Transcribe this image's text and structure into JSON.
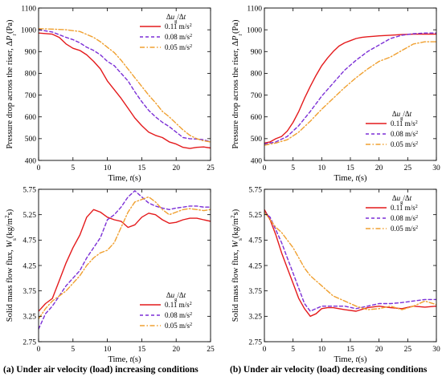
{
  "captions": {
    "a": "(a) Under air velocity (load) increasing conditions",
    "b": "(b) Under air velocity (load) decreasing conditions"
  },
  "colors": {
    "red": "#e41a1c",
    "purple": "#7b2fd6",
    "orange": "#f0a030"
  },
  "chart_data": [
    {
      "id": "top-left",
      "type": "line",
      "xlabel": "Time, t(s)",
      "ylabel": "Pressure drop across the riser, ΔPr(Pa)",
      "xlim": [
        0,
        25
      ],
      "ylim": [
        400,
        1100
      ],
      "xticks": [
        0,
        5,
        10,
        15,
        20,
        25
      ],
      "yticks": [
        400,
        500,
        600,
        700,
        800,
        900,
        1000,
        1100
      ],
      "ytick_labels": [
        "400",
        "500",
        "600",
        "700",
        "800",
        "900",
        "1000",
        "1100"
      ],
      "legend_title": "Δug/Δt",
      "legend_position": "top-right",
      "series": [
        {
          "name": "0.11 m/s2",
          "color": "#e41a1c",
          "dash": "solid",
          "x": [
            0,
            2,
            3,
            4,
            5,
            6,
            7,
            8,
            9,
            10,
            11,
            12,
            13,
            14,
            15,
            16,
            17,
            18,
            19,
            20,
            21,
            22,
            23,
            24,
            25
          ],
          "y": [
            985,
            980,
            965,
            935,
            915,
            905,
            885,
            855,
            820,
            765,
            725,
            685,
            640,
            595,
            560,
            530,
            515,
            505,
            485,
            475,
            460,
            455,
            460,
            462,
            457
          ]
        },
        {
          "name": "0.08 m/s2",
          "color": "#7b2fd6",
          "dash": "dash",
          "x": [
            0,
            2,
            4,
            5,
            6,
            7,
            8,
            9,
            10,
            11,
            12,
            13,
            14,
            15,
            16,
            17,
            18,
            19,
            20,
            21,
            22,
            23,
            24,
            25
          ],
          "y": [
            1000,
            990,
            965,
            955,
            940,
            920,
            905,
            885,
            855,
            835,
            800,
            765,
            715,
            670,
            630,
            600,
            575,
            555,
            530,
            505,
            500,
            498,
            495,
            485
          ]
        },
        {
          "name": "0.05 m/s2",
          "color": "#f0a030",
          "dash": "dashdot",
          "x": [
            0,
            2,
            4,
            6,
            8,
            9,
            10,
            11,
            12,
            13,
            14,
            15,
            16,
            17,
            18,
            19,
            20,
            21,
            22,
            23,
            24,
            25
          ],
          "y": [
            1005,
            1003,
            1000,
            992,
            965,
            945,
            920,
            895,
            860,
            820,
            780,
            740,
            700,
            665,
            625,
            600,
            570,
            540,
            515,
            500,
            490,
            485
          ]
        }
      ]
    },
    {
      "id": "top-right",
      "type": "line",
      "xlabel": "Time, t(s)",
      "ylabel": "Pressure drop across the riser, ΔPr(Pa)",
      "xlim": [
        0,
        30
      ],
      "ylim": [
        400,
        1100
      ],
      "xticks": [
        0,
        5,
        10,
        15,
        20,
        25,
        30
      ],
      "yticks": [
        400,
        500,
        600,
        700,
        800,
        900,
        1000,
        1100
      ],
      "ytick_labels": [
        "400",
        "500",
        "600",
        "700",
        "800",
        "900",
        "1000",
        "1100"
      ],
      "legend_title": "Δug/Δt",
      "legend_position": "bottom-right",
      "series": [
        {
          "name": "0.11 m/s2",
          "color": "#e41a1c",
          "dash": "solid",
          "x": [
            0,
            1,
            2,
            3,
            4,
            5,
            6,
            7,
            8,
            9,
            10,
            11,
            12,
            13,
            14,
            15,
            16,
            17,
            18,
            19,
            20,
            22,
            24,
            26,
            28,
            30
          ],
          "y": [
            480,
            485,
            500,
            510,
            535,
            575,
            625,
            685,
            740,
            790,
            835,
            870,
            900,
            925,
            940,
            950,
            960,
            965,
            968,
            970,
            972,
            975,
            978,
            980,
            980,
            980
          ]
        },
        {
          "name": "0.08 m/s2",
          "color": "#7b2fd6",
          "dash": "dash",
          "x": [
            0,
            2,
            4,
            6,
            8,
            10,
            12,
            14,
            16,
            18,
            20,
            22,
            24,
            26,
            28,
            30
          ],
          "y": [
            475,
            485,
            510,
            560,
            625,
            695,
            755,
            815,
            860,
            900,
            930,
            960,
            975,
            982,
            985,
            985
          ]
        },
        {
          "name": "0.05 m/s2",
          "color": "#f0a030",
          "dash": "dashdot",
          "x": [
            0,
            2,
            4,
            6,
            8,
            10,
            12,
            14,
            16,
            18,
            20,
            22,
            24,
            26,
            28,
            30
          ],
          "y": [
            470,
            480,
            495,
            530,
            580,
            635,
            685,
            735,
            780,
            820,
            855,
            875,
            905,
            935,
            945,
            945
          ]
        }
      ]
    },
    {
      "id": "bottom-left",
      "type": "line",
      "xlabel": "Time, t(s)",
      "ylabel": "Solid mass flow flux, Ws(kg/m2s)",
      "xlim": [
        0,
        25
      ],
      "ylim": [
        2.75,
        5.75
      ],
      "xticks": [
        0,
        5,
        10,
        15,
        20,
        25
      ],
      "yticks": [
        2.75,
        3.25,
        3.75,
        4.25,
        4.75,
        5.25,
        5.75
      ],
      "ytick_labels": [
        "2.75",
        "3.25",
        "3.75",
        "4.25",
        "4.75",
        "5.25",
        "5.75"
      ],
      "legend_title": "Δug/Δt",
      "legend_position": "bottom-right",
      "series": [
        {
          "name": "0.11 m/s2",
          "color": "#e41a1c",
          "dash": "solid",
          "x": [
            0,
            1,
            2,
            3,
            4,
            5,
            6,
            7,
            8,
            9,
            10,
            11,
            12,
            13,
            14,
            15,
            16,
            17,
            18,
            19,
            20,
            21,
            22,
            23,
            24,
            25
          ],
          "y": [
            3.35,
            3.5,
            3.6,
            3.95,
            4.3,
            4.6,
            4.85,
            5.2,
            5.35,
            5.3,
            5.2,
            5.15,
            5.12,
            5.0,
            5.05,
            5.2,
            5.28,
            5.25,
            5.15,
            5.08,
            5.1,
            5.15,
            5.18,
            5.18,
            5.15,
            5.12
          ]
        },
        {
          "name": "0.08 m/s2",
          "color": "#7b2fd6",
          "dash": "dash",
          "x": [
            0,
            1,
            2,
            3,
            4,
            5,
            6,
            7,
            8,
            9,
            10,
            11,
            12,
            13,
            14,
            15,
            16,
            17,
            18,
            19,
            20,
            21,
            22,
            23,
            24,
            25
          ],
          "y": [
            3.0,
            3.3,
            3.45,
            3.65,
            3.85,
            4.0,
            4.15,
            4.4,
            4.6,
            4.8,
            5.15,
            5.25,
            5.4,
            5.6,
            5.72,
            5.6,
            5.48,
            5.42,
            5.38,
            5.35,
            5.38,
            5.4,
            5.42,
            5.42,
            5.4,
            5.4
          ]
        },
        {
          "name": "0.05 m/s2",
          "color": "#f0a030",
          "dash": "dashdot",
          "x": [
            0,
            1,
            2,
            3,
            4,
            5,
            6,
            7,
            8,
            9,
            10,
            11,
            12,
            13,
            14,
            15,
            16,
            17,
            18,
            19,
            20,
            21,
            22,
            23,
            24,
            25
          ],
          "y": [
            3.2,
            3.4,
            3.55,
            3.65,
            3.75,
            3.9,
            4.05,
            4.25,
            4.4,
            4.5,
            4.55,
            4.7,
            5.0,
            5.3,
            5.5,
            5.55,
            5.6,
            5.5,
            5.35,
            5.25,
            5.3,
            5.35,
            5.37,
            5.35,
            5.33,
            5.35
          ]
        }
      ]
    },
    {
      "id": "bottom-right",
      "type": "line",
      "xlabel": "Time, t(s)",
      "ylabel": "Solid mass flow flux, Ws(kg/m2s)",
      "xlim": [
        0,
        30
      ],
      "ylim": [
        2.75,
        5.75
      ],
      "xticks": [
        0,
        5,
        10,
        15,
        20,
        25,
        30
      ],
      "yticks": [
        2.75,
        3.25,
        3.75,
        4.25,
        4.75,
        5.25,
        5.75
      ],
      "ytick_labels": [
        "2.75",
        "3.25",
        "3.75",
        "4.25",
        "4.75",
        "5.25",
        "5.75"
      ],
      "legend_title": "Δug/Δt",
      "legend_position": "top-right",
      "series": [
        {
          "name": "0.11 m/s2",
          "color": "#e41a1c",
          "dash": "solid",
          "x": [
            0,
            1,
            2,
            3,
            4,
            5,
            6,
            7,
            8,
            9,
            10,
            11,
            12,
            14,
            16,
            18,
            20,
            22,
            24,
            26,
            28,
            30
          ],
          "y": [
            5.35,
            5.15,
            4.85,
            4.5,
            4.2,
            3.9,
            3.6,
            3.4,
            3.25,
            3.3,
            3.4,
            3.42,
            3.42,
            3.38,
            3.35,
            3.42,
            3.45,
            3.42,
            3.4,
            3.45,
            3.43,
            3.45
          ]
        },
        {
          "name": "0.08 m/s2",
          "color": "#7b2fd6",
          "dash": "dash",
          "x": [
            0,
            1,
            2,
            3,
            4,
            5,
            6,
            7,
            8,
            9,
            10,
            11,
            12,
            14,
            16,
            18,
            20,
            22,
            24,
            26,
            28,
            30
          ],
          "y": [
            5.3,
            5.2,
            4.95,
            4.7,
            4.4,
            4.1,
            3.8,
            3.5,
            3.35,
            3.4,
            3.45,
            3.45,
            3.45,
            3.45,
            3.4,
            3.45,
            3.5,
            3.5,
            3.52,
            3.55,
            3.58,
            3.58
          ]
        },
        {
          "name": "0.05 m/s2",
          "color": "#f0a030",
          "dash": "dashdot",
          "x": [
            0,
            1,
            2,
            3,
            4,
            5,
            6,
            7,
            8,
            9,
            10,
            11,
            12,
            14,
            16,
            18,
            20,
            22,
            24,
            26,
            28,
            30
          ],
          "y": [
            5.3,
            5.15,
            5.0,
            4.9,
            4.75,
            4.6,
            4.4,
            4.2,
            4.05,
            3.95,
            3.85,
            3.75,
            3.65,
            3.55,
            3.45,
            3.38,
            3.4,
            3.45,
            3.38,
            3.45,
            3.55,
            3.48
          ]
        }
      ]
    }
  ]
}
